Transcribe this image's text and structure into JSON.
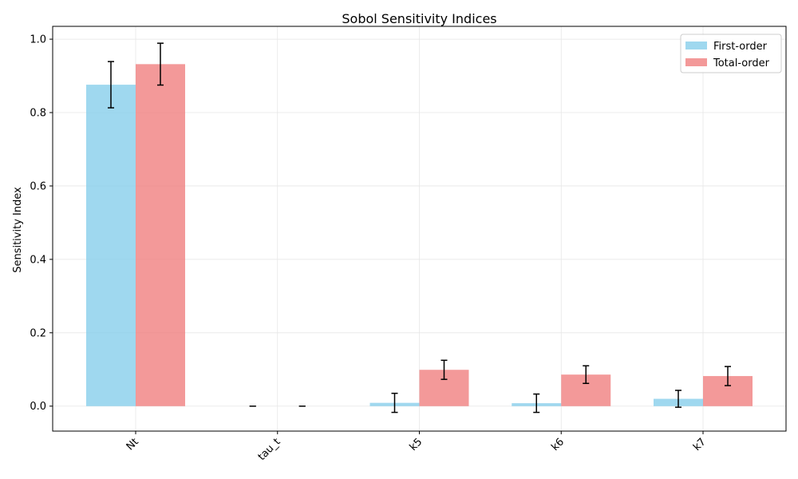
{
  "chart_data": {
    "type": "bar",
    "title": "Sobol Sensitivity Indices",
    "xlabel": "",
    "ylabel": "Sensitivity Index",
    "categories": [
      "Nt",
      "tau_t",
      "k5",
      "k6",
      "k7"
    ],
    "ylim": [
      -0.068,
      1.035
    ],
    "yticks": [
      0.0,
      0.2,
      0.4,
      0.6,
      0.8,
      1.0
    ],
    "ytick_labels": [
      "0.0",
      "0.2",
      "0.4",
      "0.6",
      "0.8",
      "1.0"
    ],
    "grid": true,
    "legend_position": "top-right",
    "series": [
      {
        "name": "First-order",
        "color": "#87ceeb",
        "values": [
          0.876,
          0.0,
          0.009,
          0.008,
          0.02
        ],
        "errors": [
          0.063,
          0.0,
          0.026,
          0.025,
          0.023
        ]
      },
      {
        "name": "Total-order",
        "color": "#f08080",
        "values": [
          0.932,
          0.0,
          0.099,
          0.086,
          0.082
        ],
        "errors": [
          0.057,
          0.0,
          0.026,
          0.024,
          0.026
        ]
      }
    ]
  }
}
